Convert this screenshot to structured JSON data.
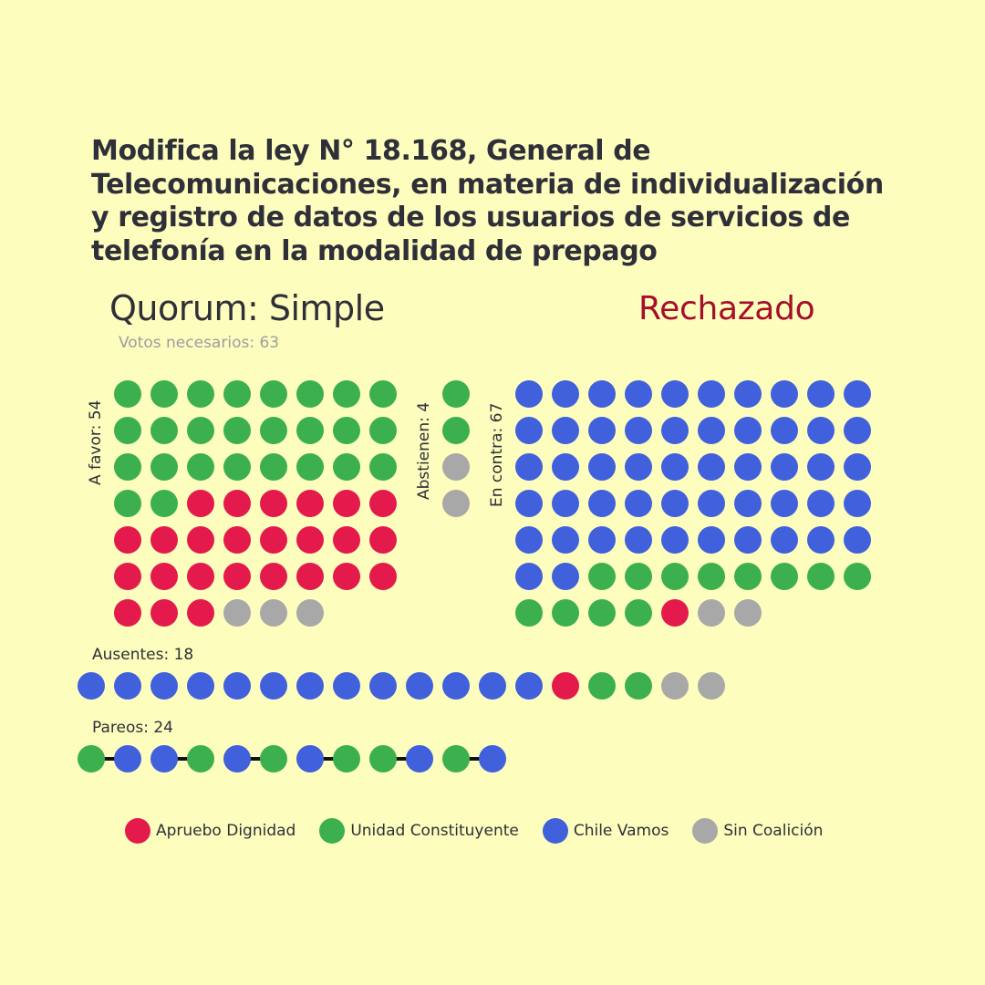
{
  "title": "Modifica la ley N° 18.168, General de Telecomunicaciones, en materia de individualización y registro de datos de los usuarios de servicios de telefonía en la modalidad de prepago",
  "quorum": "Quorum: Simple",
  "result": "Rechazado",
  "votes_needed": "Votos necesarios: 63",
  "colors": {
    "Apruebo Dignidad": "#e31a4b",
    "Unidad Constituyente": "#3cb04f",
    "Chile Vamos": "#4060dc",
    "Sin Coalición": "#a8a8a8",
    "result": "#a50f2d",
    "background": "#fdfdbd"
  },
  "chart_data": {
    "type": "waffle",
    "groups": [
      {
        "key": "favor",
        "label": "A favor: 54",
        "total": 54,
        "composition": [
          {
            "coalition": "Unidad Constituyente",
            "count": 26
          },
          {
            "coalition": "Apruebo Dignidad",
            "count": 25
          },
          {
            "coalition": "Sin Coalición",
            "count": 3
          }
        ]
      },
      {
        "key": "abstienen",
        "label": "Abstienen: 4",
        "total": 4,
        "composition": [
          {
            "coalition": "Unidad Constituyente",
            "count": 2
          },
          {
            "coalition": "Sin Coalición",
            "count": 2
          }
        ]
      },
      {
        "key": "contra",
        "label": "En contra: 67",
        "total": 67,
        "composition": [
          {
            "coalition": "Chile Vamos",
            "count": 52
          },
          {
            "coalition": "Unidad Constituyente",
            "count": 12
          },
          {
            "coalition": "Apruebo Dignidad",
            "count": 1
          },
          {
            "coalition": "Sin Coalición",
            "count": 2
          }
        ]
      },
      {
        "key": "ausentes",
        "label": "Ausentes: 18",
        "total": 18,
        "composition": [
          {
            "coalition": "Chile Vamos",
            "count": 13
          },
          {
            "coalition": "Apruebo Dignidad",
            "count": 1
          },
          {
            "coalition": "Unidad Constituyente",
            "count": 2
          },
          {
            "coalition": "Sin Coalición",
            "count": 2
          }
        ]
      },
      {
        "key": "pareos",
        "label": "Pareos: 24",
        "total": 24,
        "sequence": [
          "Unidad Constituyente",
          "Chile Vamos",
          "Chile Vamos",
          "Unidad Constituyente",
          "Chile Vamos",
          "Unidad Constituyente",
          "Chile Vamos",
          "Unidad Constituyente",
          "Unidad Constituyente",
          "Chile Vamos",
          "Unidad Constituyente",
          "Chile Vamos"
        ]
      }
    ],
    "legend": [
      "Apruebo Dignidad",
      "Unidad Constituyente",
      "Chile Vamos",
      "Sin Coalición"
    ]
  }
}
